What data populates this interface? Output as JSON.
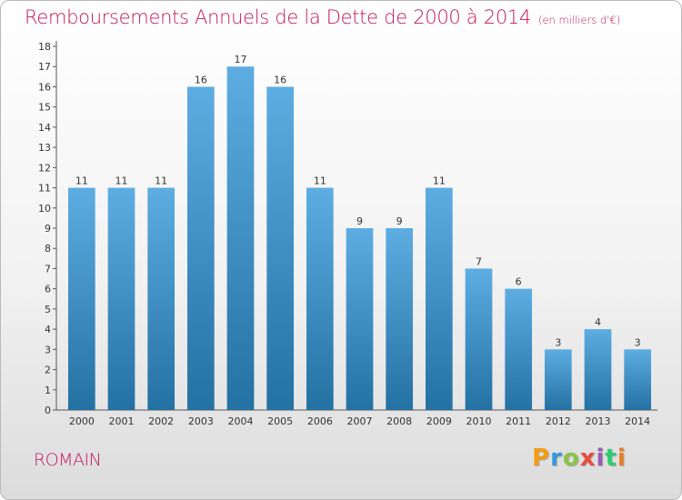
{
  "header": {
    "title": "Remboursements Annuels de la Dette de 2000 à 2014",
    "unit": "(en milliers d'€)"
  },
  "footer": {
    "commune": "ROMAIN",
    "brand_letters": [
      "P",
      "r",
      "o",
      "x",
      "i",
      "t",
      "i"
    ],
    "brand_colors": [
      "#f39c12",
      "#3498db",
      "#8bc34a",
      "#e74c3c",
      "#9b59b6",
      "#2ecc71",
      "#e67e22"
    ]
  },
  "chart_data": {
    "type": "bar",
    "title": "Remboursements Annuels de la Dette de 2000 à 2014",
    "subtitle": "(en milliers d'€)",
    "xlabel": "",
    "ylabel": "",
    "categories": [
      "2000",
      "2001",
      "2002",
      "2003",
      "2004",
      "2005",
      "2006",
      "2007",
      "2008",
      "2009",
      "2010",
      "2011",
      "2012",
      "2013",
      "2014"
    ],
    "values": [
      11,
      11,
      11,
      16,
      17,
      16,
      11,
      9,
      9,
      11,
      7,
      6,
      3,
      4,
      3
    ],
    "ylim": [
      0,
      18
    ],
    "yticks": [
      0,
      1,
      2,
      3,
      4,
      5,
      6,
      7,
      8,
      9,
      10,
      11,
      12,
      13,
      14,
      15,
      16,
      17,
      18
    ],
    "grid": false,
    "data_labels": true,
    "bar_color_top": "#5dade2",
    "bar_color_bottom": "#2471a3",
    "axis_color": "#555555"
  }
}
